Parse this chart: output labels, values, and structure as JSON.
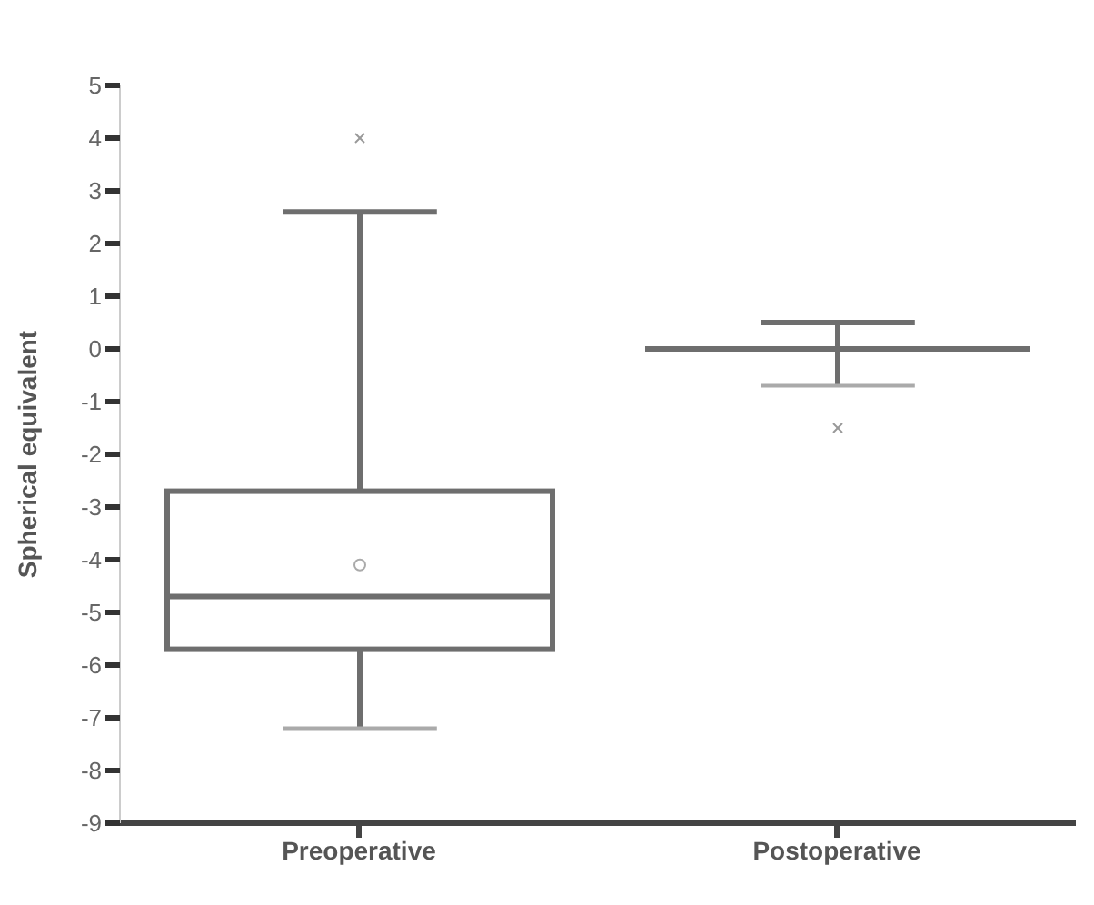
{
  "chart_data": {
    "type": "box",
    "ylabel": "Spherical equivalent",
    "categories": [
      "Preoperative",
      "Postoperative"
    ],
    "series": [
      {
        "color": "#6e6e6e",
        "boxes": [
          {
            "low": -7.2,
            "q1": -5.7,
            "median": -4.7,
            "q3": -2.7,
            "high": 2.6,
            "mean": -4.1,
            "outliers": [
              4
            ]
          },
          {
            "low": -0.7,
            "q1": 0,
            "median": 0,
            "q3": 0,
            "high": 0.5,
            "outliers": [
              -1.5
            ]
          }
        ]
      }
    ],
    "ylim": [
      -9,
      5
    ],
    "yticks": [
      5,
      4,
      3,
      2,
      1,
      0,
      -1,
      -2,
      -3,
      -4,
      -5,
      -6,
      -7,
      -8,
      -9
    ],
    "grid": false
  }
}
